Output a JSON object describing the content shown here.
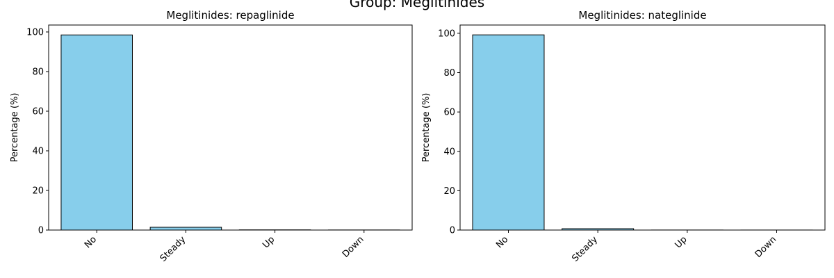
{
  "suptitle": "Group: Meglitinides",
  "chart_data": [
    {
      "type": "bar",
      "title": "Meglitinides: repaglinide",
      "xlabel": "",
      "ylabel": "Percentage (%)",
      "categories": [
        "No",
        "Steady",
        "Up",
        "Down"
      ],
      "values": [
        98.5,
        1.4,
        0.1,
        0.05
      ],
      "yticks": [
        0,
        20,
        40,
        60,
        80,
        100
      ],
      "ylim": [
        0,
        103.5
      ],
      "bar_color": "#87ceeb",
      "edge_color": "#000000",
      "grid": false
    },
    {
      "type": "bar",
      "title": "Meglitinides: nateglinide",
      "xlabel": "",
      "ylabel": "Percentage (%)",
      "categories": [
        "No",
        "Steady",
        "Up",
        "Down"
      ],
      "values": [
        99.2,
        0.7,
        0.03,
        0.02
      ],
      "yticks": [
        0,
        20,
        40,
        60,
        80,
        100
      ],
      "ylim": [
        0,
        104.2
      ],
      "bar_color": "#87ceeb",
      "edge_color": "#000000",
      "grid": false
    }
  ]
}
